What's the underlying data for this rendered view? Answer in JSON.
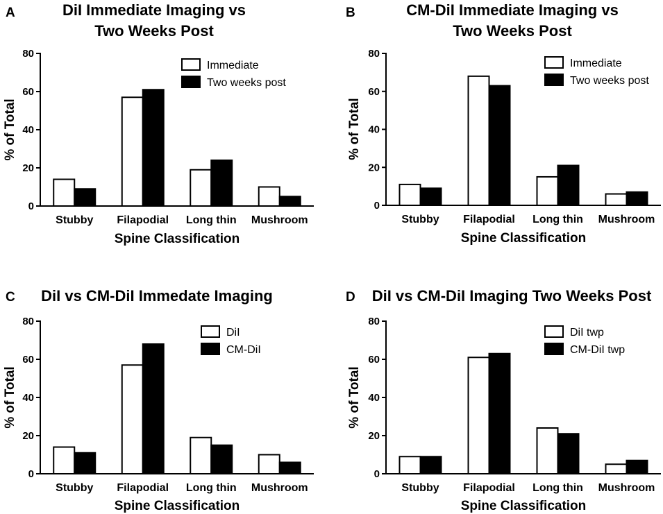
{
  "chart_data": [
    {
      "panel": "A",
      "type": "bar",
      "title_lines": [
        "DiI Immediate Imaging vs",
        "Two Weeks Post"
      ],
      "categories": [
        "Stubby",
        "Filapodial",
        "Long thin",
        "Mushroom"
      ],
      "series": [
        {
          "name": "Immediate",
          "fill": "#ffffff",
          "values": [
            14,
            57,
            19,
            10
          ]
        },
        {
          "name": "Two weeks post",
          "fill": "#000000",
          "values": [
            9,
            61,
            24,
            5
          ]
        }
      ],
      "xlabel": "Spine Classification",
      "ylabel": "% of Total",
      "ylim": [
        0,
        80
      ],
      "yticks": [
        0,
        20,
        40,
        60,
        80
      ],
      "legend": "top-right"
    },
    {
      "panel": "B",
      "type": "bar",
      "title_lines": [
        "CM-DiI Immediate Imaging vs",
        "Two Weeks Post"
      ],
      "categories": [
        "Stubby",
        "Filapodial",
        "Long thin",
        "Mushroom"
      ],
      "series": [
        {
          "name": "Immediate",
          "fill": "#ffffff",
          "values": [
            11,
            68,
            15,
            6
          ]
        },
        {
          "name": "Two weeks post",
          "fill": "#000000",
          "values": [
            9,
            63,
            21,
            7
          ]
        }
      ],
      "xlabel": "Spine Classification",
      "ylabel": "% of Total",
      "ylim": [
        0,
        80
      ],
      "yticks": [
        0,
        20,
        40,
        60,
        80
      ],
      "legend": "top-right"
    },
    {
      "panel": "C",
      "type": "bar",
      "title_lines": [
        "DiI vs CM-DiI Immedate  Imaging"
      ],
      "categories": [
        "Stubby",
        "Filapodial",
        "Long thin",
        "Mushroom"
      ],
      "series": [
        {
          "name": "DiI",
          "fill": "#ffffff",
          "values": [
            14,
            57,
            19,
            10
          ]
        },
        {
          "name": "CM-DiI",
          "fill": "#000000",
          "values": [
            11,
            68,
            15,
            6
          ]
        }
      ],
      "xlabel": "Spine Classification",
      "ylabel": "% of Total",
      "ylim": [
        0,
        80
      ],
      "yticks": [
        0,
        20,
        40,
        60,
        80
      ],
      "legend": "top-right"
    },
    {
      "panel": "D",
      "type": "bar",
      "title_lines": [
        "DiI vs CM-DiI Imaging Two Weeks Post"
      ],
      "categories": [
        "Stubby",
        "Filapodial",
        "Long thin",
        "Mushroom"
      ],
      "series": [
        {
          "name": "DiI twp",
          "fill": "#ffffff",
          "values": [
            9,
            61,
            24,
            5
          ]
        },
        {
          "name": "CM-DiI twp",
          "fill": "#000000",
          "values": [
            9,
            63,
            21,
            7
          ]
        }
      ],
      "xlabel": "Spine Classification",
      "ylabel": "% of Total",
      "ylim": [
        0,
        80
      ],
      "yticks": [
        0,
        20,
        40,
        60,
        80
      ],
      "legend": "top-right"
    }
  ]
}
